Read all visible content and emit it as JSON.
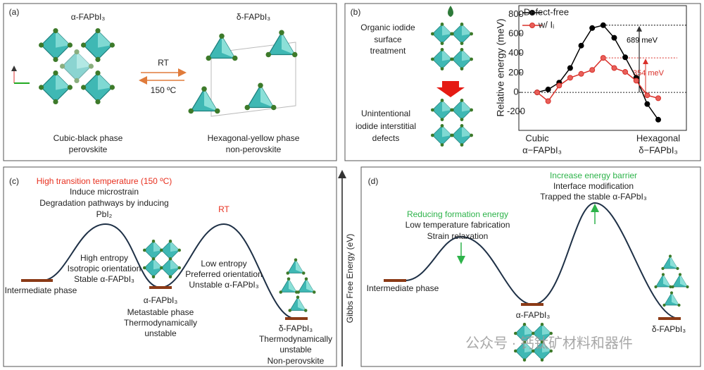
{
  "panel_a": {
    "label": "(a)",
    "alpha_title": "α-FAPbI₃",
    "delta_title": "δ-FAPbI₃",
    "forward": "RT",
    "backward": "150 ºC",
    "alpha_caption": [
      "Cubic-black phase",
      "perovskite"
    ],
    "delta_caption": [
      "Hexagonal-yellow phase",
      "non-perovskite"
    ]
  },
  "panel_b": {
    "label": "(b)",
    "top_text": [
      "Organic iodide",
      "surface",
      "treatment"
    ],
    "bottom_text": [
      "Unintentional",
      "iodide interstitial",
      "defects"
    ]
  },
  "chart_data": {
    "type": "line",
    "y_label": "Relative energy (meV)",
    "x_start_label": [
      "Cubic",
      "α−FAPbI₃"
    ],
    "x_end_label": [
      "Hexagonal",
      "δ−FAPbI₃"
    ],
    "categories": [
      null,
      null,
      null,
      null,
      null,
      null,
      null,
      null,
      null,
      null,
      null,
      null
    ],
    "series": [
      {
        "name": "Defect-free",
        "color": "#000000",
        "values": [
          0,
          30,
          100,
          250,
          480,
          660,
          689,
          560,
          360,
          150,
          -120,
          -280
        ]
      },
      {
        "name": "w/ Iᵢ",
        "color": "#d9302a",
        "values": [
          0,
          -90,
          70,
          150,
          190,
          230,
          354,
          250,
          210,
          120,
          -30,
          -60
        ]
      }
    ],
    "ylim": [
      -390,
      890
    ],
    "yticks": [
      -200,
      0,
      200,
      400,
      600,
      800
    ],
    "annotations": [
      {
        "value": 689,
        "label": "689 meV"
      },
      {
        "value": 354,
        "label": "354 meV"
      }
    ]
  },
  "panel_c": {
    "label": "(c)",
    "peak1_title": "High transition temperature (150 ºC)",
    "peak1_lines": [
      "Induce microstrain",
      "Degradation pathways by inducing",
      "PbI₂"
    ],
    "peak2_title": "RT",
    "left_lines": [
      "High entropy",
      "Isotropic orientation",
      "Stable α-FAPbI₃"
    ],
    "mid_lines": [
      "Low entropy",
      "Preferred orientation",
      "Unstable α-FAPbI₃"
    ],
    "intermediate": "Intermediate phase",
    "alpha_lines": [
      "α-FAPbI₃",
      "Metastable phase",
      "Thermodynamically",
      "unstable"
    ],
    "delta_lines": [
      "δ-FAPbI₃",
      "Thermodynamically",
      "unstable",
      "Non-perovskite"
    ]
  },
  "axis_label": "Gibbs Free Energy (eV)",
  "panel_d": {
    "label": "(d)",
    "peak1_title": "Reducing formation energy",
    "peak1_lines": [
      "Low temperature fabrication",
      "Strain relaxation"
    ],
    "peak2_title": "Increase energy barrier",
    "peak2_lines": [
      "Interface modification",
      "Trapped the stable α-FAPbI₃"
    ],
    "intermediate": "Intermediate phase",
    "alpha": "α-FAPbI₃",
    "delta": "δ-FAPbI₃"
  },
  "watermark": "公众号 · 钙钛矿材料和器件"
}
